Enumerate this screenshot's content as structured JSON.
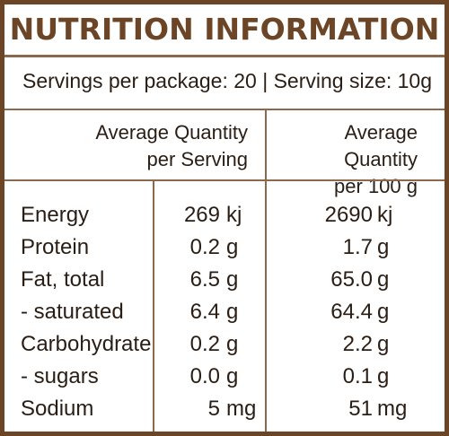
{
  "title": "NUTRITION INFORMATION",
  "serving_info": "Servings per package: 20 | Serving size: 10g",
  "column_headers": {
    "per_serving_line1": "Average Quantity",
    "per_serving_line2": "per Serving",
    "per_100g_line1": "Average Quantity",
    "per_100g_line2": "per 100 g"
  },
  "rows": [
    {
      "nutrient": "Energy",
      "per_serving": "269",
      "per_serving_unit": "kj",
      "per_100g": "2690",
      "per_100g_unit": "kj"
    },
    {
      "nutrient": "Protein",
      "per_serving": "0.2",
      "per_serving_unit": "g",
      "per_100g": "1.7",
      "per_100g_unit": "g"
    },
    {
      "nutrient": "Fat, total",
      "per_serving": "6.5",
      "per_serving_unit": "g",
      "per_100g": "65.0",
      "per_100g_unit": "g"
    },
    {
      "nutrient": "- saturated",
      "per_serving": "6.4",
      "per_serving_unit": "g",
      "per_100g": "64.4",
      "per_100g_unit": "g"
    },
    {
      "nutrient": "Carbohydrate",
      "per_serving": "0.2",
      "per_serving_unit": "g",
      "per_100g": "2.2",
      "per_100g_unit": "g"
    },
    {
      "nutrient": "- sugars",
      "per_serving": "0.0",
      "per_serving_unit": "g",
      "per_100g": "0.1",
      "per_100g_unit": "g"
    },
    {
      "nutrient": "Sodium",
      "per_serving": "5",
      "per_serving_unit": "mg",
      "per_100g": "51",
      "per_100g_unit": "mg"
    }
  ],
  "colors": {
    "border": "#6b4526",
    "title": "#6b4526",
    "text": "#2a1d14"
  }
}
